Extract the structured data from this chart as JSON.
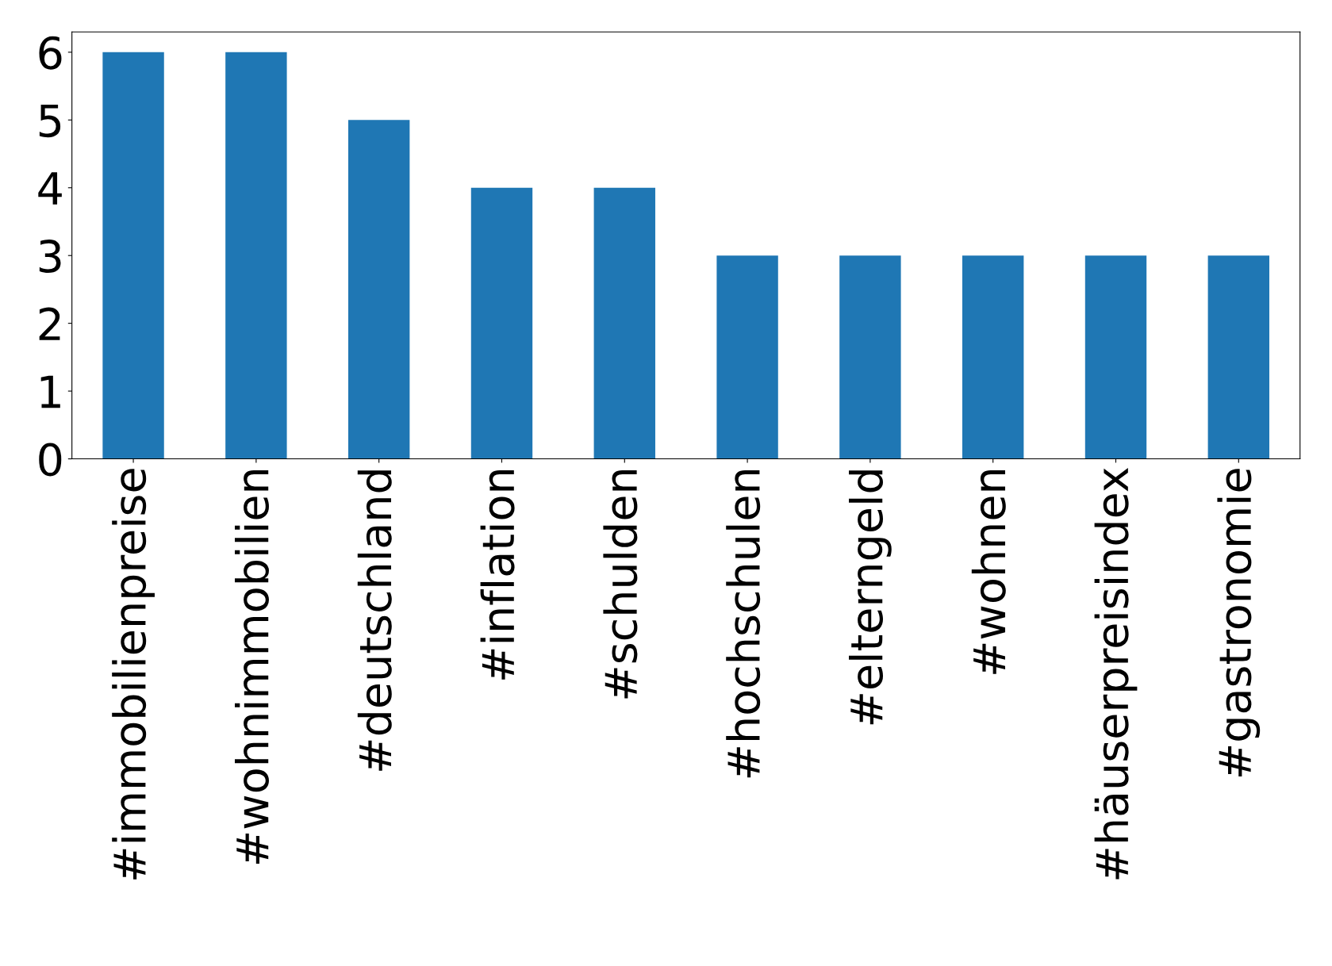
{
  "chart_data": {
    "type": "bar",
    "categories": [
      "#immobilienpreise",
      "#wohnimmobilien",
      "#deutschland",
      "#inflation",
      "#schulden",
      "#hochschulen",
      "#elterngeld",
      "#wohnen",
      "#häuserpreisindex",
      "#gastronomie"
    ],
    "values": [
      6,
      6,
      5,
      4,
      4,
      3,
      3,
      3,
      3,
      3
    ],
    "color": "#1f77b4",
    "ylim": [
      0,
      6.3
    ],
    "yticks": [
      0,
      1,
      2,
      3,
      4,
      5,
      6
    ],
    "grid": false,
    "legend": false
  }
}
